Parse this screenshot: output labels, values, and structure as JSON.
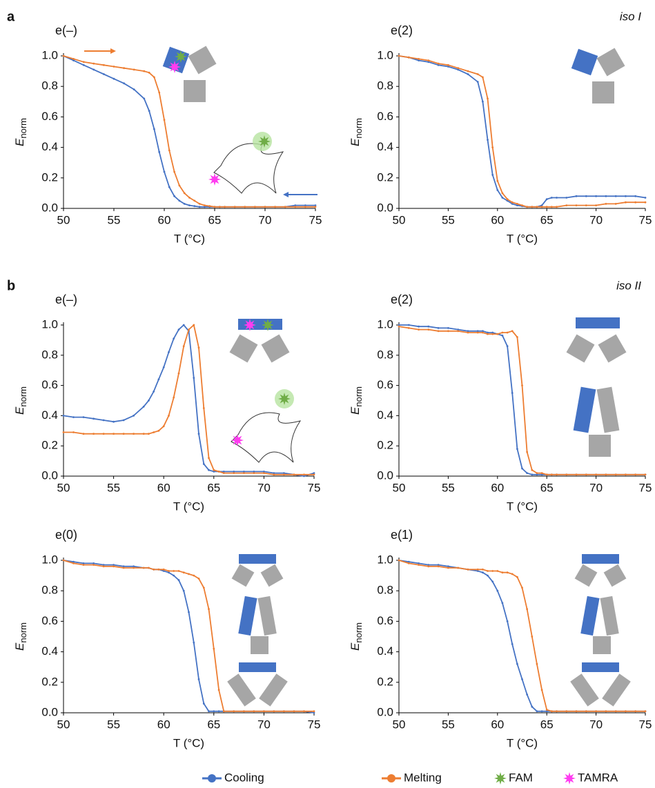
{
  "chart_data": [
    {
      "type": "line",
      "panel_label": "a",
      "title": "e(–)",
      "xlabel": "T (°C)",
      "ylabel": {
        "symbol": "E",
        "subscript": "norm"
      },
      "xlim": [
        50,
        75
      ],
      "xticks": [
        50,
        55,
        60,
        65,
        70,
        75
      ],
      "ylim": [
        0,
        1
      ],
      "yticks": [
        {
          "value": 0,
          "label": "0.0"
        },
        0.2,
        0.4,
        0.6,
        0.8,
        {
          "value": 1,
          "label": "1.0"
        }
      ],
      "x": [
        50,
        51,
        52,
        53,
        54,
        55,
        56,
        57,
        58,
        58.5,
        59,
        59.5,
        60,
        60.5,
        61,
        61.5,
        62,
        62.5,
        63,
        63.5,
        64,
        64.5,
        65,
        65.5,
        66,
        67,
        68,
        69,
        70,
        71,
        72,
        73,
        74,
        75
      ],
      "series": [
        {
          "color": "#4472c4",
          "values": [
            1.0,
            0.97,
            0.94,
            0.91,
            0.88,
            0.85,
            0.82,
            0.78,
            0.72,
            0.64,
            0.52,
            0.37,
            0.24,
            0.14,
            0.08,
            0.05,
            0.03,
            0.02,
            0.015,
            0.01,
            0.01,
            0.01,
            0.01,
            0.01,
            0.01,
            0.01,
            0.01,
            0.01,
            0.01,
            0.01,
            0.01,
            0.02,
            0.02,
            0.02
          ]
        },
        {
          "color": "#ed7d31",
          "values": [
            1.0,
            0.98,
            0.96,
            0.95,
            0.94,
            0.93,
            0.92,
            0.91,
            0.9,
            0.89,
            0.86,
            0.76,
            0.58,
            0.38,
            0.24,
            0.15,
            0.1,
            0.07,
            0.05,
            0.03,
            0.02,
            0.015,
            0.01,
            0.01,
            0.01,
            0.01,
            0.01,
            0.01,
            0.01,
            0.01,
            0.01,
            0.01,
            0.01,
            0.01
          ]
        }
      ]
    },
    {
      "type": "line",
      "annotation": "iso I",
      "title": "e(2)",
      "xlabel": "T (°C)",
      "ylabel": {
        "symbol": "E",
        "subscript": "norm"
      },
      "xlim": [
        50,
        75
      ],
      "xticks": [
        50,
        55,
        60,
        65,
        70,
        75
      ],
      "ylim": [
        0,
        1
      ],
      "yticks": [
        {
          "value": 0,
          "label": "0.0"
        },
        0.2,
        0.4,
        0.6,
        0.8,
        {
          "value": 1,
          "label": "1.0"
        }
      ],
      "x": [
        50,
        51,
        52,
        53,
        54,
        55,
        56,
        57,
        58,
        58.5,
        59,
        59.5,
        60,
        60.5,
        61,
        61.5,
        62,
        62.5,
        63,
        63.5,
        64,
        64.5,
        65,
        65.5,
        66,
        67,
        68,
        69,
        70,
        71,
        72,
        73,
        74,
        75
      ],
      "series": [
        {
          "color": "#4472c4",
          "values": [
            1.0,
            0.99,
            0.97,
            0.96,
            0.94,
            0.93,
            0.91,
            0.88,
            0.83,
            0.7,
            0.45,
            0.22,
            0.12,
            0.07,
            0.05,
            0.03,
            0.02,
            0.015,
            0.01,
            0.01,
            0.01,
            0.02,
            0.06,
            0.07,
            0.07,
            0.07,
            0.08,
            0.08,
            0.08,
            0.08,
            0.08,
            0.08,
            0.08,
            0.07
          ]
        },
        {
          "color": "#ed7d31",
          "values": [
            1.0,
            0.99,
            0.98,
            0.97,
            0.95,
            0.94,
            0.92,
            0.9,
            0.88,
            0.86,
            0.72,
            0.4,
            0.18,
            0.1,
            0.06,
            0.04,
            0.03,
            0.02,
            0.01,
            0.01,
            0.01,
            0.01,
            0.01,
            0.01,
            0.01,
            0.02,
            0.02,
            0.02,
            0.02,
            0.03,
            0.03,
            0.04,
            0.04,
            0.04
          ]
        }
      ]
    },
    {
      "type": "line",
      "panel_label": "b",
      "title": "e(–)",
      "xlabel": "T (°C)",
      "ylabel": {
        "symbol": "E",
        "subscript": "norm"
      },
      "xlim": [
        50,
        75
      ],
      "xticks": [
        50,
        55,
        60,
        65,
        70,
        75
      ],
      "ylim": [
        0,
        1
      ],
      "yticks": [
        {
          "value": 0,
          "label": "0.0"
        },
        0.2,
        0.4,
        0.6,
        0.8,
        {
          "value": 1,
          "label": "1.0"
        }
      ],
      "x": [
        50,
        51,
        52,
        53,
        54,
        55,
        56,
        57,
        58,
        58.5,
        59,
        59.5,
        60,
        60.5,
        61,
        61.5,
        62,
        62.5,
        63,
        63.5,
        64,
        64.5,
        65,
        65.5,
        66,
        67,
        68,
        69,
        70,
        71,
        72,
        73,
        74,
        75
      ],
      "series": [
        {
          "color": "#4472c4",
          "values": [
            0.4,
            0.39,
            0.39,
            0.38,
            0.37,
            0.36,
            0.37,
            0.4,
            0.46,
            0.5,
            0.56,
            0.64,
            0.72,
            0.82,
            0.91,
            0.97,
            1.0,
            0.96,
            0.65,
            0.28,
            0.08,
            0.04,
            0.03,
            0.03,
            0.03,
            0.03,
            0.03,
            0.03,
            0.03,
            0.02,
            0.02,
            0.01,
            0.0,
            0.02
          ]
        },
        {
          "color": "#ed7d31",
          "values": [
            0.29,
            0.29,
            0.28,
            0.28,
            0.28,
            0.28,
            0.28,
            0.28,
            0.28,
            0.28,
            0.29,
            0.3,
            0.33,
            0.4,
            0.52,
            0.68,
            0.86,
            0.97,
            1.0,
            0.85,
            0.45,
            0.12,
            0.04,
            0.03,
            0.02,
            0.02,
            0.02,
            0.02,
            0.02,
            0.01,
            0.01,
            0.01,
            0.01,
            0.01
          ]
        }
      ]
    },
    {
      "type": "line",
      "annotation": "iso II",
      "title": "e(2)",
      "xlabel": "T (°C)",
      "ylabel": {
        "symbol": "E",
        "subscript": "norm"
      },
      "xlim": [
        50,
        75
      ],
      "xticks": [
        50,
        55,
        60,
        65,
        70,
        75
      ],
      "ylim": [
        0,
        1
      ],
      "yticks": [
        {
          "value": 0,
          "label": "0.0"
        },
        0.2,
        0.4,
        0.6,
        0.8,
        {
          "value": 1,
          "label": "1.0"
        }
      ],
      "x": [
        50,
        51,
        52,
        53,
        54,
        55,
        56,
        57,
        58,
        58.5,
        59,
        59.5,
        60,
        60.5,
        61,
        61.5,
        62,
        62.5,
        63,
        63.5,
        64,
        64.5,
        65,
        65.5,
        66,
        67,
        68,
        69,
        70,
        71,
        72,
        73,
        74,
        75
      ],
      "series": [
        {
          "color": "#4472c4",
          "values": [
            1.0,
            1.0,
            0.99,
            0.99,
            0.98,
            0.98,
            0.97,
            0.96,
            0.96,
            0.96,
            0.95,
            0.95,
            0.94,
            0.93,
            0.86,
            0.55,
            0.18,
            0.05,
            0.02,
            0.01,
            0.01,
            0.01,
            0.01,
            0.01,
            0.01,
            0.01,
            0.01,
            0.01,
            0.01,
            0.01,
            0.01,
            0.01,
            0.01,
            0.01
          ]
        },
        {
          "color": "#ed7d31",
          "values": [
            0.99,
            0.98,
            0.97,
            0.97,
            0.96,
            0.96,
            0.96,
            0.95,
            0.95,
            0.95,
            0.94,
            0.94,
            0.94,
            0.95,
            0.95,
            0.96,
            0.92,
            0.6,
            0.16,
            0.04,
            0.02,
            0.02,
            0.01,
            0.01,
            0.01,
            0.01,
            0.01,
            0.01,
            0.01,
            0.01,
            0.01,
            0.01,
            0.01,
            0.01
          ]
        }
      ]
    },
    {
      "type": "line",
      "title": "e(0)",
      "xlabel": "T (°C)",
      "ylabel": {
        "symbol": "E",
        "subscript": "norm"
      },
      "xlim": [
        50,
        75
      ],
      "xticks": [
        50,
        55,
        60,
        65,
        70,
        75
      ],
      "ylim": [
        0,
        1
      ],
      "yticks": [
        {
          "value": 0,
          "label": "0.0"
        },
        0.2,
        0.4,
        0.6,
        0.8,
        {
          "value": 1,
          "label": "1.0"
        }
      ],
      "x": [
        50,
        51,
        52,
        53,
        54,
        55,
        56,
        57,
        58,
        58.5,
        59,
        59.5,
        60,
        60.5,
        61,
        61.5,
        62,
        62.5,
        63,
        63.5,
        64,
        64.5,
        65,
        65.5,
        66,
        67,
        68,
        69,
        70,
        71,
        72,
        73,
        74,
        75
      ],
      "series": [
        {
          "color": "#4472c4",
          "values": [
            1.0,
            0.99,
            0.98,
            0.98,
            0.97,
            0.97,
            0.96,
            0.96,
            0.95,
            0.95,
            0.94,
            0.94,
            0.93,
            0.92,
            0.9,
            0.87,
            0.8,
            0.66,
            0.46,
            0.22,
            0.06,
            0.01,
            0.01,
            0.01,
            0.01,
            0.01,
            0.01,
            0.01,
            0.01,
            0.01,
            0.01,
            0.01,
            0.01,
            0.0
          ]
        },
        {
          "color": "#ed7d31",
          "values": [
            1.0,
            0.98,
            0.97,
            0.97,
            0.96,
            0.96,
            0.95,
            0.95,
            0.95,
            0.95,
            0.94,
            0.94,
            0.94,
            0.93,
            0.93,
            0.93,
            0.92,
            0.91,
            0.9,
            0.88,
            0.82,
            0.68,
            0.42,
            0.15,
            0.01,
            0.01,
            0.01,
            0.01,
            0.01,
            0.01,
            0.01,
            0.01,
            0.01,
            0.01
          ]
        }
      ]
    },
    {
      "type": "line",
      "title": "e(1)",
      "xlabel": "T (°C)",
      "ylabel": {
        "symbol": "E",
        "subscript": "norm"
      },
      "xlim": [
        50,
        75
      ],
      "xticks": [
        50,
        55,
        60,
        65,
        70,
        75
      ],
      "ylim": [
        0,
        1
      ],
      "yticks": [
        {
          "value": 0,
          "label": "0.0"
        },
        0.2,
        0.4,
        0.6,
        0.8,
        {
          "value": 1,
          "label": "1.0"
        }
      ],
      "x": [
        50,
        51,
        52,
        53,
        54,
        55,
        56,
        57,
        58,
        58.5,
        59,
        59.5,
        60,
        60.5,
        61,
        61.5,
        62,
        62.5,
        63,
        63.5,
        64,
        64.5,
        65,
        65.5,
        66,
        67,
        68,
        69,
        70,
        71,
        72,
        73,
        74,
        75
      ],
      "series": [
        {
          "color": "#4472c4",
          "values": [
            1.0,
            0.99,
            0.98,
            0.97,
            0.97,
            0.96,
            0.95,
            0.94,
            0.93,
            0.92,
            0.9,
            0.86,
            0.8,
            0.72,
            0.6,
            0.45,
            0.32,
            0.22,
            0.12,
            0.04,
            0.01,
            0.01,
            0.01,
            0.01,
            0.01,
            0.01,
            0.01,
            0.01,
            0.01,
            0.01,
            0.01,
            0.01,
            0.01,
            0.01
          ]
        },
        {
          "color": "#ed7d31",
          "values": [
            1.0,
            0.98,
            0.97,
            0.96,
            0.96,
            0.95,
            0.95,
            0.94,
            0.94,
            0.94,
            0.93,
            0.93,
            0.93,
            0.92,
            0.92,
            0.91,
            0.89,
            0.82,
            0.68,
            0.5,
            0.32,
            0.15,
            0.02,
            0.01,
            0.01,
            0.01,
            0.01,
            0.01,
            0.01,
            0.01,
            0.01,
            0.01,
            0.01,
            0.01
          ]
        }
      ]
    }
  ],
  "legend": [
    {
      "name": "Cooling",
      "color": "#4472c4",
      "marker": "line"
    },
    {
      "name": "Melting",
      "color": "#ed7d31",
      "marker": "line"
    },
    {
      "name": "FAM",
      "color": "#70ad47",
      "marker": "star"
    },
    {
      "name": "TAMRA",
      "color": "#ff3cf0",
      "marker": "star"
    }
  ]
}
